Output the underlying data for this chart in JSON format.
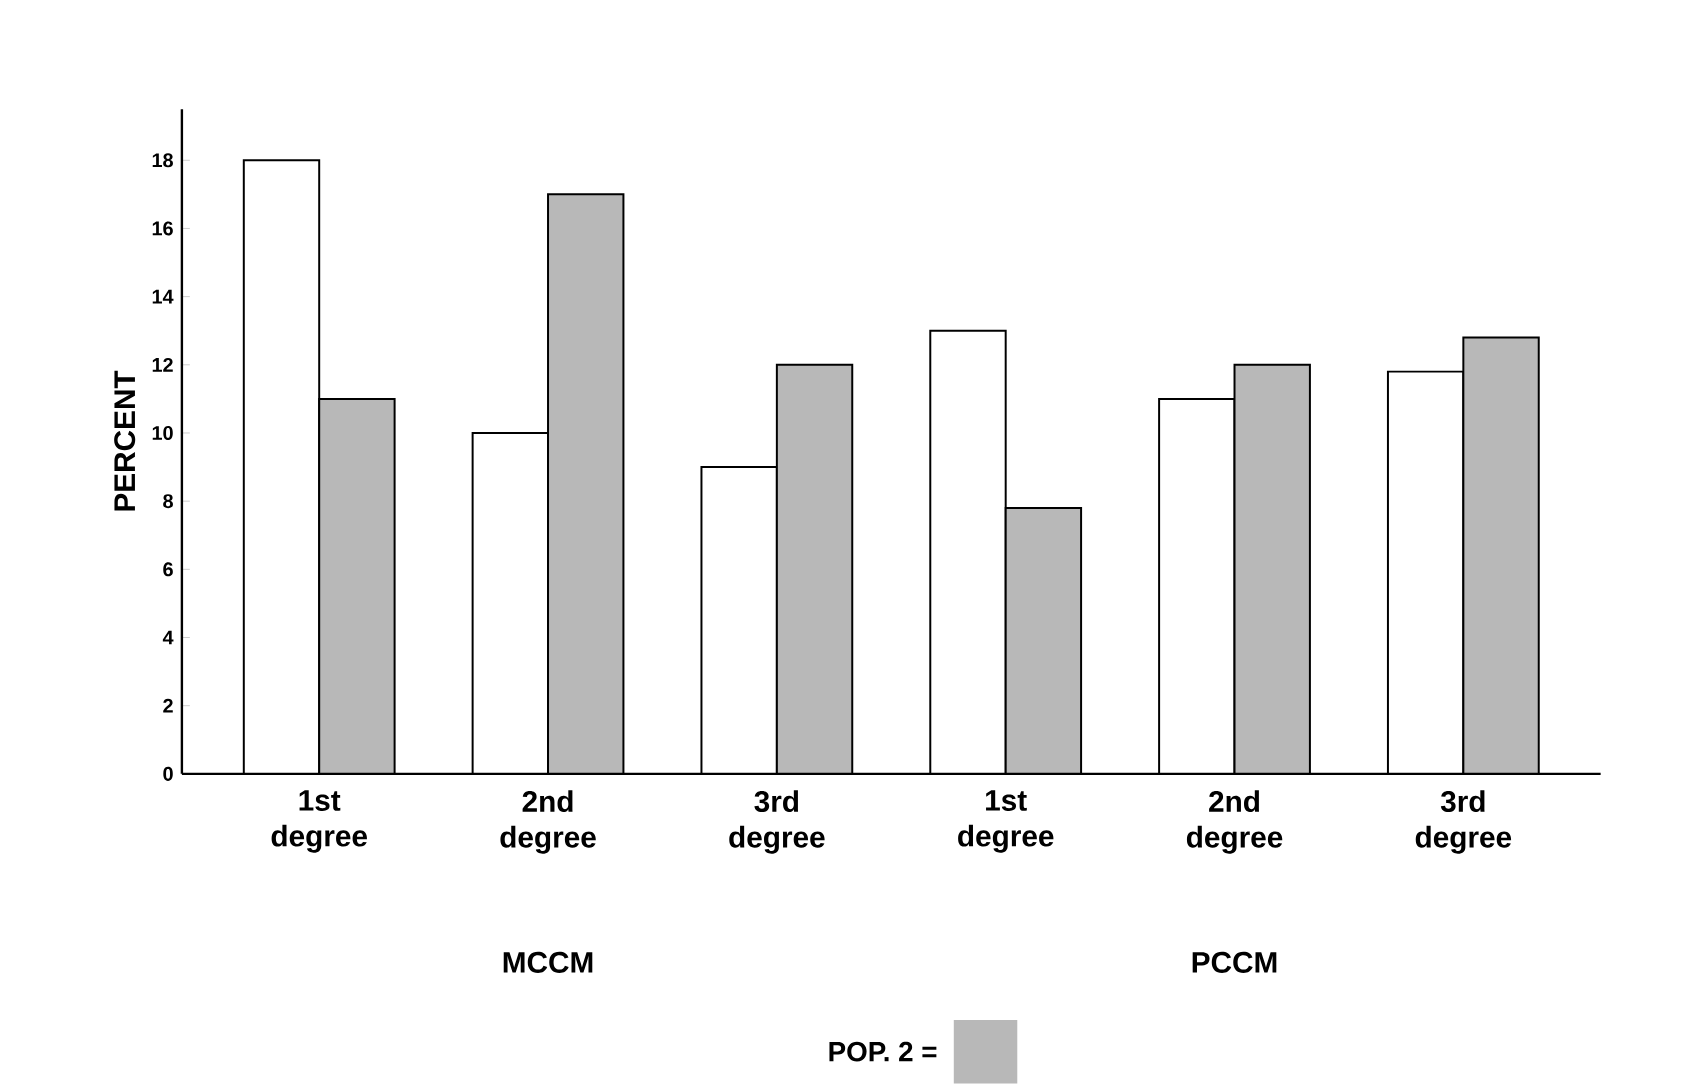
{
  "chart_data": {
    "type": "bar",
    "ylabel": "PERCENT",
    "categories": [
      "1st degree",
      "2nd degree",
      "3rd degree",
      "1st degree",
      "2nd degree",
      "3rd degree"
    ],
    "series": [
      {
        "color": "#ffffff",
        "values": [
          18,
          10,
          9,
          13,
          11,
          11.8
        ]
      },
      {
        "name": "POP. 2 =",
        "color": "#b8b8b8",
        "values": [
          11,
          17,
          12,
          7.8,
          12,
          12.8
        ]
      }
    ],
    "ylim": [
      0,
      19.5
    ],
    "yticks": [
      0,
      2,
      4,
      6,
      8,
      10,
      12,
      14,
      16,
      18
    ],
    "grid": false,
    "legend": "bottom",
    "annotations": [
      "MCCM",
      "PCCM"
    ]
  }
}
